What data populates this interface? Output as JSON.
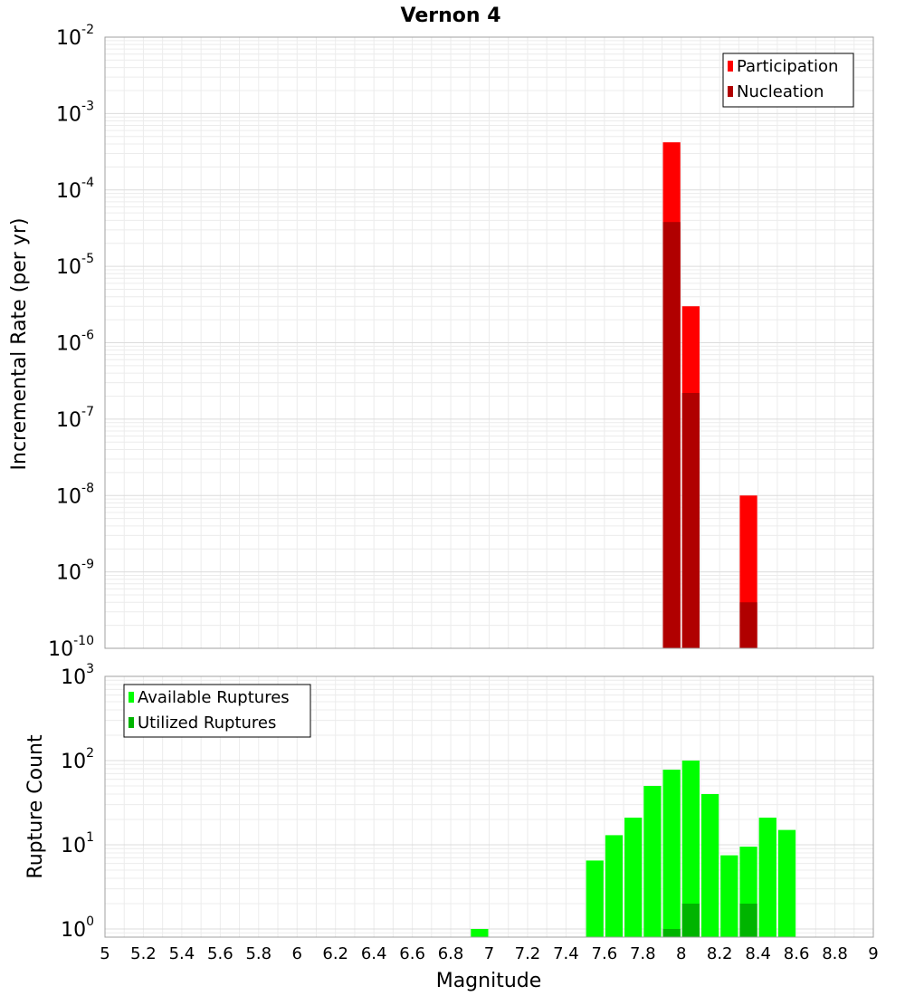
{
  "chart_data": [
    {
      "type": "bar",
      "title": "Vernon 4",
      "xlabel": "",
      "ylabel": "Incremental Rate (per yr)",
      "xlim": [
        5,
        9
      ],
      "ylim": [
        1e-10,
        0.01
      ],
      "yscale": "log",
      "y_tick_exponents": [
        -10,
        -9,
        -8,
        -7,
        -6,
        -5,
        -4,
        -3,
        -2
      ],
      "grid": true,
      "legend_position": "top-right",
      "bin_width": 0.1,
      "series": [
        {
          "name": "Participation",
          "color": "#ff0000",
          "points": [
            {
              "x": 7.95,
              "y": 0.00042
            },
            {
              "x": 8.05,
              "y": 3e-06
            },
            {
              "x": 8.35,
              "y": 1e-08
            }
          ]
        },
        {
          "name": "Nucleation",
          "color": "#b00000",
          "points": [
            {
              "x": 7.95,
              "y": 3.8e-05
            },
            {
              "x": 8.05,
              "y": 2.2e-07
            },
            {
              "x": 8.35,
              "y": 4e-10
            }
          ]
        }
      ]
    },
    {
      "type": "bar",
      "title": "",
      "xlabel": "Magnitude",
      "ylabel": "Rupture Count",
      "xlim": [
        5,
        9
      ],
      "ylim": [
        0.8,
        1000
      ],
      "yscale": "log",
      "y_tick_exponents": [
        0,
        1,
        2,
        3
      ],
      "x_ticks": [
        "5",
        "5.2",
        "5.4",
        "5.6",
        "5.8",
        "6",
        "6.2",
        "6.4",
        "6.6",
        "6.8",
        "7",
        "7.2",
        "7.4",
        "7.6",
        "7.8",
        "8",
        "8.2",
        "8.4",
        "8.6",
        "8.8",
        "9"
      ],
      "grid": true,
      "legend_position": "top-left",
      "bin_width": 0.1,
      "series": [
        {
          "name": "Available Ruptures",
          "color": "#00ff00",
          "points": [
            {
              "x": 6.95,
              "y": 1
            },
            {
              "x": 7.55,
              "y": 6.5
            },
            {
              "x": 7.65,
              "y": 13
            },
            {
              "x": 7.75,
              "y": 21
            },
            {
              "x": 7.85,
              "y": 50
            },
            {
              "x": 7.95,
              "y": 78
            },
            {
              "x": 8.05,
              "y": 100
            },
            {
              "x": 8.15,
              "y": 40
            },
            {
              "x": 8.25,
              "y": 7.5
            },
            {
              "x": 8.35,
              "y": 9.5
            },
            {
              "x": 8.45,
              "y": 21
            },
            {
              "x": 8.55,
              "y": 15
            }
          ]
        },
        {
          "name": "Utilized Ruptures",
          "color": "#00b400",
          "points": [
            {
              "x": 7.95,
              "y": 1
            },
            {
              "x": 8.05,
              "y": 2
            },
            {
              "x": 8.35,
              "y": 2
            }
          ]
        }
      ]
    }
  ]
}
